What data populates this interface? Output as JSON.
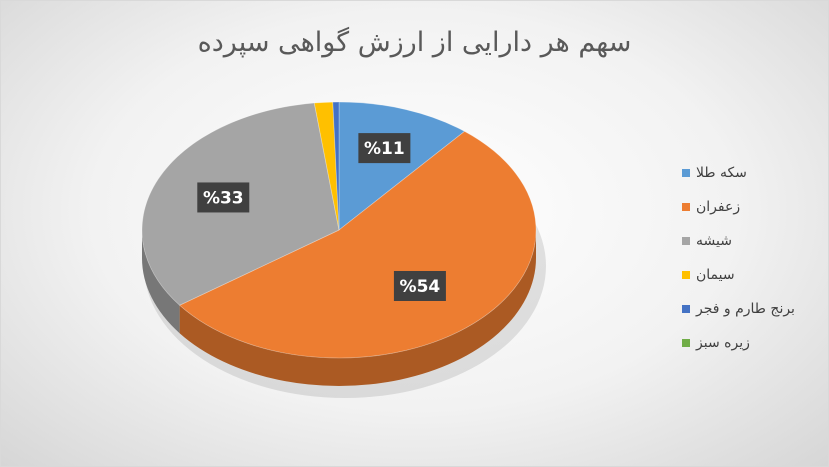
{
  "chart_data": {
    "type": "pie",
    "title": "سهم هر دارایی از ارزش گواهی سپرده",
    "categories": [
      "سکه طلا",
      "زعفران",
      "شیشه",
      "سیمان",
      "برنج طارم و فجر",
      "زیره سبز"
    ],
    "values": [
      11,
      54,
      33,
      1.5,
      0.5,
      0
    ],
    "data_labels": [
      "%11",
      "%54",
      "%33",
      "",
      "",
      ""
    ],
    "colors": [
      "#5b9bd5",
      "#ed7d31",
      "#a5a5a5",
      "#ffc000",
      "#4472c4",
      "#70ad47"
    ],
    "legend_position": "right",
    "style": "3d"
  }
}
